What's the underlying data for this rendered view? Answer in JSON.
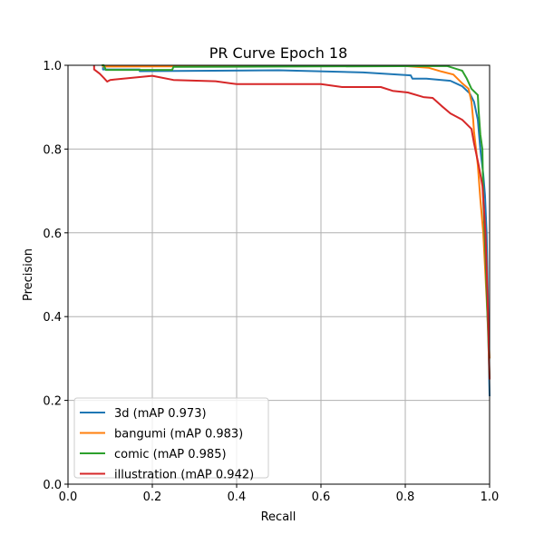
{
  "chart_data": {
    "type": "line",
    "title": "PR Curve Epoch 18",
    "xlabel": "Recall",
    "ylabel": "Precision",
    "xlim": [
      0,
      1
    ],
    "ylim": [
      0,
      1
    ],
    "xticks": [
      "0.0",
      "0.2",
      "0.4",
      "0.6",
      "0.8",
      "1.0"
    ],
    "yticks": [
      "0.0",
      "0.2",
      "0.4",
      "0.6",
      "0.8",
      "1.0"
    ],
    "grid": true,
    "legend_position": "lower-left",
    "series": [
      {
        "name": "3d (mAP 0.973)",
        "color": "#1f77b4",
        "x": [
          0.083,
          0.083,
          0.17,
          0.17,
          0.5,
          0.7,
          0.813,
          0.817,
          0.85,
          0.907,
          0.935,
          0.953,
          0.963,
          0.972,
          0.978,
          0.985,
          0.989,
          0.993,
          0.996,
          0.998,
          1.0
        ],
        "y": [
          1.0,
          0.99,
          0.99,
          0.986,
          0.988,
          0.983,
          0.976,
          0.968,
          0.968,
          0.963,
          0.95,
          0.933,
          0.913,
          0.87,
          0.799,
          0.74,
          0.69,
          0.6,
          0.45,
          0.3,
          0.21
        ]
      },
      {
        "name": "bangumi (mAP 0.983)",
        "color": "#ff7f0e",
        "x": [
          0.083,
          0.083,
          0.5,
          0.8,
          0.856,
          0.886,
          0.914,
          0.935,
          0.95,
          0.957,
          0.961,
          0.963,
          0.972,
          0.978,
          0.985,
          0.99,
          0.995,
          1.0
        ],
        "y": [
          1.0,
          0.997,
          0.998,
          0.998,
          0.994,
          0.985,
          0.978,
          0.957,
          0.944,
          0.913,
          0.87,
          0.842,
          0.762,
          0.68,
          0.6,
          0.5,
          0.4,
          0.3
        ]
      },
      {
        "name": "comic (mAP 0.985)",
        "color": "#2ca02c",
        "x": [
          0.08,
          0.085,
          0.09,
          0.247,
          0.25,
          0.85,
          0.9,
          0.935,
          0.946,
          0.957,
          0.972,
          0.974,
          0.978,
          0.983,
          0.985,
          0.99,
          0.995,
          1.0
        ],
        "y": [
          1.0,
          1.0,
          0.989,
          0.989,
          0.996,
          0.998,
          0.998,
          0.987,
          0.968,
          0.944,
          0.929,
          0.892,
          0.835,
          0.799,
          0.68,
          0.55,
          0.4,
          0.25
        ]
      },
      {
        "name": "illustration (mAP 0.942)",
        "color": "#d62728",
        "x": [
          0.062,
          0.062,
          0.075,
          0.085,
          0.093,
          0.1,
          0.2,
          0.25,
          0.35,
          0.4,
          0.6,
          0.65,
          0.742,
          0.77,
          0.806,
          0.843,
          0.865,
          0.886,
          0.907,
          0.935,
          0.957,
          0.963,
          0.974,
          0.983,
          0.99,
          0.995,
          1.0
        ],
        "y": [
          1.0,
          0.99,
          0.98,
          0.97,
          0.961,
          0.965,
          0.975,
          0.965,
          0.962,
          0.955,
          0.955,
          0.948,
          0.948,
          0.939,
          0.935,
          0.924,
          0.922,
          0.903,
          0.885,
          0.87,
          0.848,
          0.814,
          0.762,
          0.712,
          0.6,
          0.45,
          0.25
        ]
      }
    ]
  }
}
